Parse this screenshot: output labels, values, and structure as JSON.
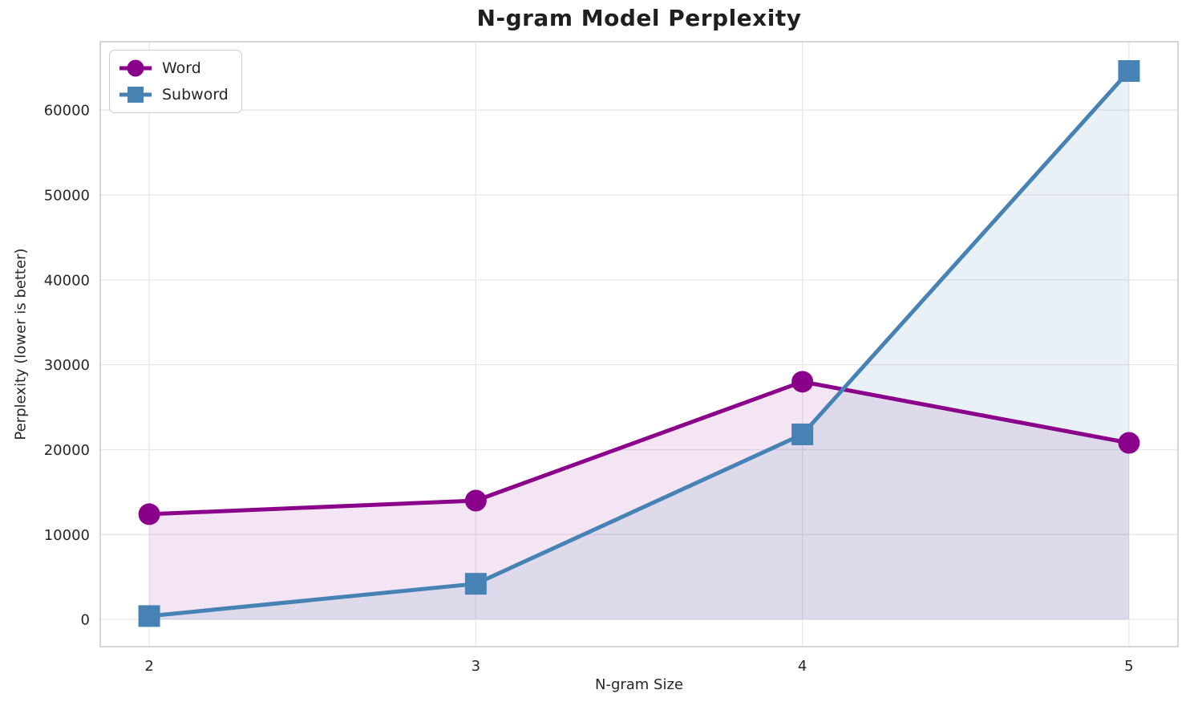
{
  "chart_data": {
    "type": "line",
    "title": "N-gram Model Perplexity",
    "xlabel": "N-gram Size",
    "ylabel": "Perplexity (lower is better)",
    "x": [
      2,
      3,
      4,
      5
    ],
    "series": [
      {
        "name": "Word",
        "marker": "circle",
        "color": "#8B008B",
        "fill_opacity": 0.1,
        "values": [
          12400,
          14000,
          28000,
          20800
        ]
      },
      {
        "name": "Subword",
        "marker": "square",
        "color": "#4682B4",
        "fill_opacity": 0.12,
        "values": [
          400,
          4200,
          21800,
          64600
        ]
      }
    ],
    "xticks": [
      2,
      3,
      4,
      5
    ],
    "yticks": [
      0,
      10000,
      20000,
      30000,
      40000,
      50000,
      60000
    ],
    "xlim": [
      1.85,
      5.15
    ],
    "ylim": [
      -3200,
      68050
    ],
    "fill_to_zero": true,
    "grid": true,
    "legend_position": "upper left",
    "style": {
      "background": "#FFFFFF",
      "grid_color": "#E7E7E7",
      "spine_color": "#CBCBCB",
      "tick_label_color": "#262626",
      "title_color": "#1F1F1F",
      "line_width": 5,
      "marker_size": 27
    }
  }
}
